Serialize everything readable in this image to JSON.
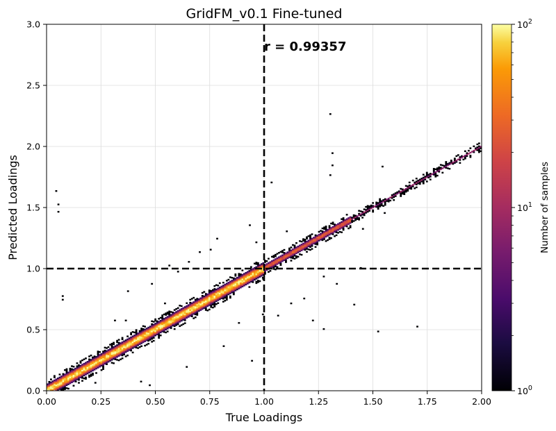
{
  "chart_data": {
    "type": "heatmap",
    "title": "GridFM_v0.1 Fine-tuned",
    "xlabel": "True Loadings",
    "ylabel": "Predicted Loadings",
    "xlim": [
      0,
      2
    ],
    "ylim": [
      0,
      3
    ],
    "xticks": [
      0,
      0.25,
      0.5,
      0.75,
      1.0,
      1.25,
      1.5,
      1.75,
      2.0
    ],
    "xtick_labels": [
      "0.00",
      "0.25",
      "0.50",
      "0.75",
      "1.00",
      "1.25",
      "1.50",
      "1.75",
      "2.00"
    ],
    "yticks": [
      0,
      0.5,
      1.0,
      1.5,
      2.0,
      2.5,
      3.0
    ],
    "ytick_labels": [
      "0.0",
      "0.5",
      "1.0",
      "1.5",
      "2.0",
      "2.5",
      "3.0"
    ],
    "grid": true,
    "annotation": "r = 0.99357",
    "reference_lines": {
      "vertical_x": 1.0,
      "horizontal_y": 1.0,
      "style": "dashed",
      "color": "#000000"
    },
    "colorbar": {
      "label": "Number of samples",
      "scale": "log",
      "range": [
        1,
        100
      ],
      "colormap": "inferno",
      "ticks": [
        {
          "value": 1,
          "base": "10",
          "exp": "0"
        },
        {
          "value": 10,
          "base": "10",
          "exp": "1"
        },
        {
          "value": 100,
          "base": "10",
          "exp": "2"
        }
      ]
    },
    "density": {
      "description_of_bins": "2D histogram of (true, predicted) pairs concentrated along y = x",
      "diagonal_segments": [
        {
          "x_from": 0.0,
          "x_to": 1.0,
          "peak_count": 100,
          "spread": 0.03
        },
        {
          "x_from": 1.0,
          "x_to": 1.4,
          "peak_count": 30,
          "spread": 0.02
        },
        {
          "x_from": 1.4,
          "x_to": 2.0,
          "peak_count": 8,
          "spread": 0.01
        }
      ],
      "outliers": [
        [
          0.04,
          1.63
        ],
        [
          0.05,
          1.52
        ],
        [
          0.05,
          1.46
        ],
        [
          0.07,
          0.77
        ],
        [
          0.07,
          0.74
        ],
        [
          0.31,
          0.57
        ],
        [
          0.36,
          0.57
        ],
        [
          0.64,
          0.19
        ],
        [
          0.43,
          0.07
        ],
        [
          0.47,
          0.04
        ],
        [
          0.13,
          0.07
        ],
        [
          0.22,
          0.06
        ],
        [
          0.48,
          0.87
        ],
        [
          0.56,
          1.02
        ],
        [
          0.6,
          0.97
        ],
        [
          0.65,
          1.05
        ],
        [
          0.7,
          1.13
        ],
        [
          0.75,
          1.15
        ],
        [
          0.78,
          1.24
        ],
        [
          0.93,
          1.35
        ],
        [
          0.96,
          1.21
        ],
        [
          1.03,
          1.7
        ],
        [
          1.1,
          1.3
        ],
        [
          1.3,
          2.26
        ],
        [
          1.31,
          1.94
        ],
        [
          1.31,
          1.84
        ],
        [
          1.3,
          1.76
        ],
        [
          1.27,
          0.93
        ],
        [
          1.18,
          0.75
        ],
        [
          1.12,
          0.71
        ],
        [
          1.06,
          0.61
        ],
        [
          1.27,
          0.5
        ],
        [
          1.22,
          0.57
        ],
        [
          1.41,
          0.7
        ],
        [
          1.44,
          1.0
        ],
        [
          1.45,
          1.32
        ],
        [
          1.55,
          1.45
        ],
        [
          1.54,
          1.83
        ],
        [
          1.7,
          0.52
        ],
        [
          1.52,
          0.48
        ],
        [
          1.33,
          0.87
        ],
        [
          0.94,
          0.24
        ],
        [
          0.37,
          0.81
        ],
        [
          0.54,
          0.71
        ],
        [
          0.81,
          0.36
        ],
        [
          0.88,
          0.55
        ],
        [
          0.99,
          0.92
        ],
        [
          0.99,
          0.62
        ]
      ]
    }
  }
}
